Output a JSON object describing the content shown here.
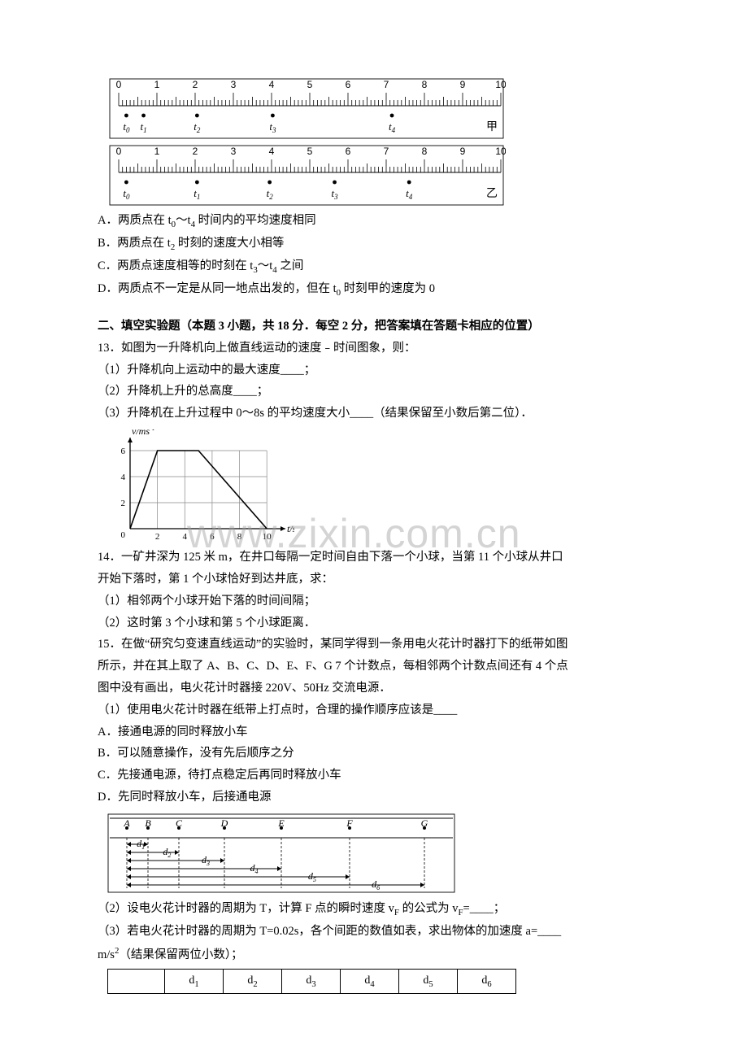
{
  "ruler_甲": {
    "top_numbers": [
      "0",
      "1",
      "2",
      "3",
      "4",
      "5",
      "6",
      "7",
      "8",
      "9",
      "10"
    ],
    "dots": [
      {
        "x": 0.02,
        "label": "t",
        "sub": "0"
      },
      {
        "x": 0.065,
        "label": "t",
        "sub": "1"
      },
      {
        "x": 0.205,
        "label": "t",
        "sub": "2"
      },
      {
        "x": 0.403,
        "label": "t",
        "sub": "3"
      },
      {
        "x": 0.715,
        "label": "t",
        "sub": "4"
      }
    ],
    "caption": "甲"
  },
  "ruler_乙": {
    "top_numbers": [
      "0",
      "1",
      "2",
      "3",
      "4",
      "5",
      "6",
      "7",
      "8",
      "9",
      "10"
    ],
    "dots": [
      {
        "x": 0.02,
        "label": "t",
        "sub": "0"
      },
      {
        "x": 0.205,
        "label": "t",
        "sub": "1"
      },
      {
        "x": 0.395,
        "label": "t",
        "sub": "2"
      },
      {
        "x": 0.565,
        "label": "t",
        "sub": "3"
      },
      {
        "x": 0.76,
        "label": "t",
        "sub": "4"
      }
    ],
    "caption": "乙"
  },
  "q_opts": {
    "A": "A．两质点在 t",
    "A_sub1": "0",
    "A_mid": "～t",
    "A_sub2": "4",
    "A_tail": " 时间内的平均速度相同",
    "B": "B．两质点在 t",
    "B_sub": "2",
    "B_tail": " 时刻的速度大小相等",
    "C": "C．两质点速度相等的时刻在 t",
    "C_sub1": "3",
    "C_mid": "～t",
    "C_sub2": "4",
    "C_tail": " 之间",
    "D": "D．两质点不一定是从同一地点出发的，但在 t",
    "D_sub": "0",
    "D_tail": " 时刻甲的速度为 0"
  },
  "section_title": "二、填空实验题（本题 3 小题，共 18 分．每空 2 分，把答案填在答题卡相应的位置）",
  "q13": {
    "lead": "13．如图为一升降机向上做直线运动的速度﹣时间图象，则：",
    "p1": "（1）升降机向上运动中的最大速度____；",
    "p2": "（2）升降机上升的总高度____；",
    "p3": "（3）升降机在上升过程中 0～8s 的平均速度大小____（结果保留至小数后第二位）．"
  },
  "vt_chart": {
    "xlim": [
      0,
      11
    ],
    "ylim": [
      0,
      6.5
    ],
    "xticks": [
      0,
      2,
      4,
      6,
      8,
      10
    ],
    "yticks": [
      2,
      4,
      6
    ],
    "points": [
      [
        0,
        0
      ],
      [
        2,
        6
      ],
      [
        5,
        6
      ],
      [
        10,
        0
      ]
    ],
    "xlabel": "t/s",
    "ylabel": "v/ms",
    "ylabel_sup": "-1",
    "grid": "#888",
    "line": "#000",
    "bg": "#fff"
  },
  "q14": {
    "lead_a": "14．一矿井深为 125 米 m，在井口每隔一定时间自由下落一个小球，当第 11 个小球从井口",
    "lead_b": "开始下落时，第 1 个小球恰好到达井底，求：",
    "p1": "（1）相邻两个小球开始下落的时间间隔；",
    "p2": "（2）这时第 3 个小球和第 5 个小球距离．"
  },
  "q15": {
    "lead_a": "15．在做“研究匀变速直线运动”的实验时，某同学得到一条用电火花计时器打下的纸带如图",
    "lead_b": "所示，并在其上取了 A、B、C、D、E、F、G 7 个计数点，每相邻两个计数点间还有 4 个点",
    "lead_c": "图中没有画出，电火花计时器接 220V、50Hz 交流电源．",
    "p1": "（1）使用电火花计时器在纸带上打点时，合理的操作顺序应该是____",
    "optA": "A．接通电源的同时释放小车",
    "optB": "B．可以随意操作，没有先后顺序之分",
    "optC": "C．先接通电源，待打点稳定后再同时释放小车",
    "optD": "D．先同时释放小车，后接通电源",
    "p2a": "（2）设电火花计时器的周期为 T，计算 F 点的瞬时速度 v",
    "p2sub": "F",
    "p2b": " 的公式为 v",
    "p2sub2": "F",
    "p2c": "=____；",
    "p3a": "（3）若电火花计时器的周期为 T=0.02s，各个间距的数值如表，求出物体的加速度 a=____",
    "p3b": "m/s",
    "p3sup": "2",
    "p3c": "（结果保留两位小数）；"
  },
  "tape": {
    "labels": [
      "A",
      "B",
      "C",
      "D",
      "E",
      "F",
      "G"
    ],
    "positions": [
      0.035,
      0.1,
      0.195,
      0.335,
      0.51,
      0.72,
      0.95
    ],
    "d_labels": [
      "d",
      "d",
      "d",
      "d",
      "d",
      "d"
    ],
    "d_subs": [
      "1",
      "2",
      "3",
      "4",
      "5",
      "6"
    ]
  },
  "table_heads": [
    "",
    "d",
    "d",
    "d",
    "d",
    "d",
    "d"
  ],
  "table_subs": [
    "",
    "1",
    "2",
    "3",
    "4",
    "5",
    "6"
  ]
}
